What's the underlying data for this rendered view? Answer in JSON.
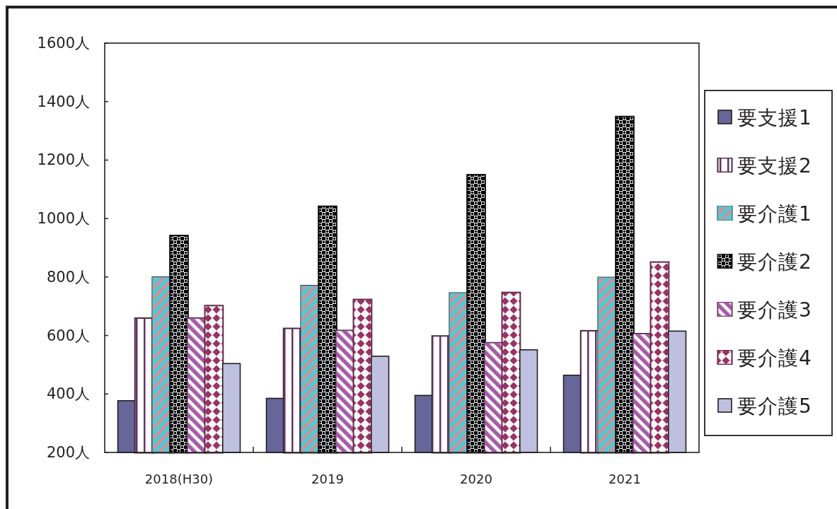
{
  "chart_data": {
    "type": "bar",
    "categories": [
      "2018(H30)",
      "2019",
      "2020",
      "2021"
    ],
    "series": [
      {
        "name": "要支援1",
        "color": "#666699",
        "values": [
          377,
          385,
          395,
          464
        ]
      },
      {
        "name": "要支援2",
        "color": "#663366",
        "values": [
          658,
          623,
          597,
          615
        ]
      },
      {
        "name": "要介護1",
        "color": "#5bc5d0",
        "values": [
          798,
          769,
          744,
          797
        ]
      },
      {
        "name": "要介護2",
        "color": "#000000",
        "values": [
          941,
          1041,
          1149,
          1348
        ]
      },
      {
        "name": "要介護3",
        "color": "#a65ba6",
        "values": [
          658,
          616,
          574,
          605
        ]
      },
      {
        "name": "要介護4",
        "color": "#993366",
        "values": [
          701,
          722,
          746,
          850
        ]
      },
      {
        "name": "要介護5",
        "color": "#bfc0e0",
        "values": [
          504,
          529,
          551,
          615
        ]
      }
    ],
    "ylim": [
      200,
      1600
    ],
    "yticks": [
      {
        "value": 200,
        "label": "200人"
      },
      {
        "value": 400,
        "label": "400人"
      },
      {
        "value": 600,
        "label": "600人"
      },
      {
        "value": 800,
        "label": "800人"
      },
      {
        "value": 1000,
        "label": "1000人"
      },
      {
        "value": 1200,
        "label": "1200人"
      },
      {
        "value": 1400,
        "label": "1400人"
      },
      {
        "value": 1600,
        "label": "1600人"
      }
    ],
    "legend": "right"
  }
}
